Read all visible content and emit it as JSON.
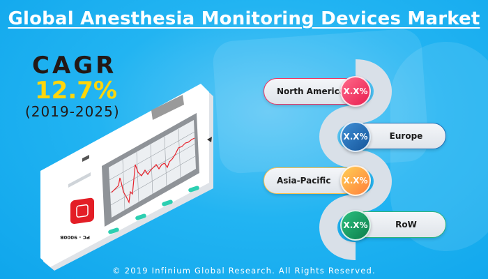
{
  "title": "Global Anesthesia Monitoring Devices Market",
  "cagr": {
    "label": "CAGR",
    "value": "12.7%",
    "period": "(2019-2025)"
  },
  "device_label": "PC - 9000B",
  "regions": [
    {
      "name": "North America",
      "value": "X.X%",
      "color": "#f0325f"
    },
    {
      "name": "Europe",
      "value": "X.X%",
      "color": "#1f6db3"
    },
    {
      "name": "Asia-Pacific",
      "value": "X.X%",
      "color": "#ff9a3c"
    },
    {
      "name": "RoW",
      "value": "X.X%",
      "color": "#0fa263"
    }
  ],
  "footer": "© 2019 Infinium Global Research. All Rights Reserved."
}
